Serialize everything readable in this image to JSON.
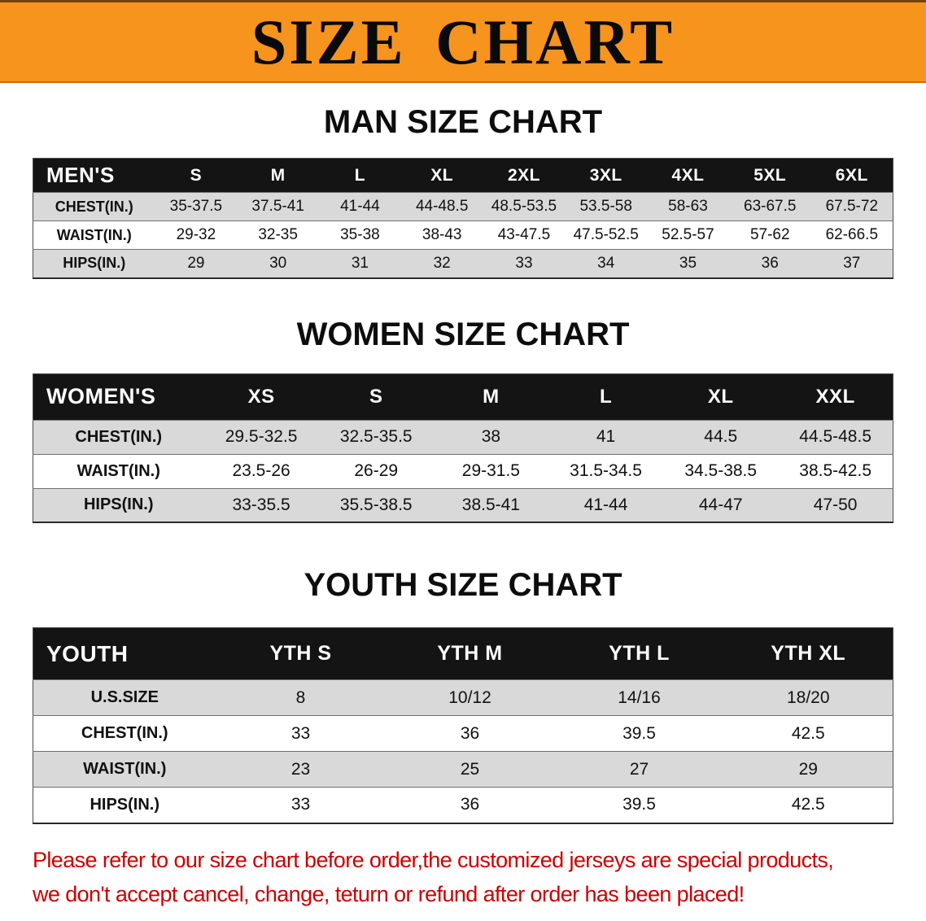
{
  "banner": {
    "title": "SIZE CHART"
  },
  "colors": {
    "banner_bg": "#F7941D",
    "header_bg": "#141414",
    "stripe": "#D9D9D9",
    "notice_red": "#CC0000"
  },
  "sections": [
    {
      "heading": "MAN SIZE CHART",
      "header": [
        "MEN'S",
        "S",
        "M",
        "L",
        "XL",
        "2XL",
        "3XL",
        "4XL",
        "5XL",
        "6XL"
      ],
      "rows": [
        [
          "CHEST(IN.)",
          "35-37.5",
          "37.5-41",
          "41-44",
          "44-48.5",
          "48.5-53.5",
          "53.5-58",
          "58-63",
          "63-67.5",
          "67.5-72"
        ],
        [
          "WAIST(IN.)",
          "29-32",
          "32-35",
          "35-38",
          "38-43",
          "43-47.5",
          "47.5-52.5",
          "52.5-57",
          "57-62",
          "62-66.5"
        ],
        [
          "HIPS(IN.)",
          "29",
          "30",
          "31",
          "32",
          "33",
          "34",
          "35",
          "36",
          "37"
        ]
      ]
    },
    {
      "heading": "WOMEN SIZE CHART",
      "header": [
        "WOMEN'S",
        "XS",
        "S",
        "M",
        "L",
        "XL",
        "XXL"
      ],
      "rows": [
        [
          "CHEST(IN.)",
          "29.5-32.5",
          "32.5-35.5",
          "38",
          "41",
          "44.5",
          "44.5-48.5"
        ],
        [
          "WAIST(IN.)",
          "23.5-26",
          "26-29",
          "29-31.5",
          "31.5-34.5",
          "34.5-38.5",
          "38.5-42.5"
        ],
        [
          "HIPS(IN.)",
          "33-35.5",
          "35.5-38.5",
          "38.5-41",
          "41-44",
          "44-47",
          "47-50"
        ]
      ]
    },
    {
      "heading": "YOUTH SIZE CHART",
      "header": [
        "YOUTH",
        "YTH S",
        "YTH M",
        "YTH L",
        "YTH XL"
      ],
      "rows": [
        [
          "U.S.SIZE",
          "8",
          "10/12",
          "14/16",
          "18/20"
        ],
        [
          "CHEST(IN.)",
          "33",
          "36",
          "39.5",
          "42.5"
        ],
        [
          "WAIST(IN.)",
          "23",
          "25",
          "27",
          "29"
        ],
        [
          "HIPS(IN.)",
          "33",
          "36",
          "39.5",
          "42.5"
        ]
      ]
    }
  ],
  "footer": {
    "line1": "Please refer to our size chart before order,the customized jerseys are special products,",
    "line2": "we don't accept cancel, change, teturn or refund after order has been placed!"
  }
}
